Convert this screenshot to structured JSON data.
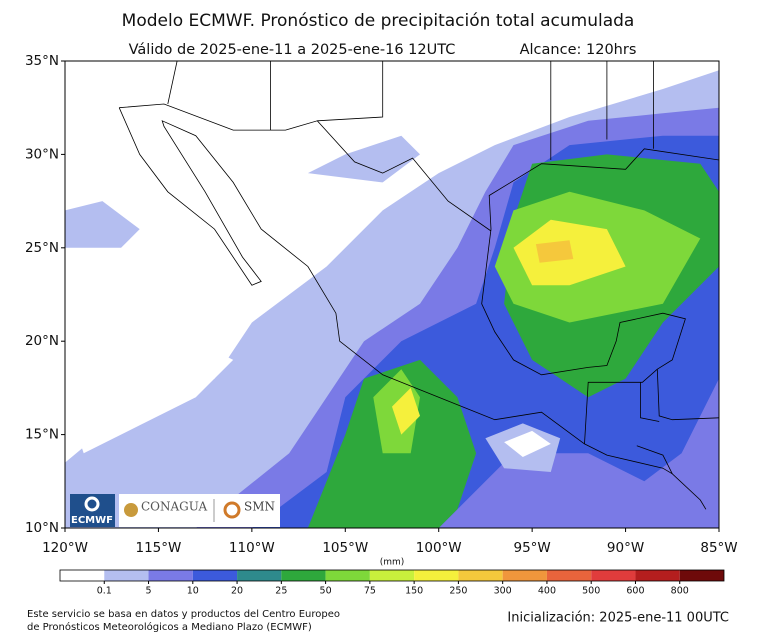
{
  "header": {
    "title": "Modelo ECMWF. Pronóstico de precipitación total acumulada",
    "valid": "Válido de 2025-ene-11 a 2025-ene-16 12UTC",
    "lead": "Alcance: 120hrs"
  },
  "map": {
    "lat_ticks": [
      {
        "value": 35,
        "label": "35°N"
      },
      {
        "value": 30,
        "label": "30°N"
      },
      {
        "value": 25,
        "label": "25°N"
      },
      {
        "value": 20,
        "label": "20°N"
      },
      {
        "value": 15,
        "label": "15°N"
      },
      {
        "value": 10,
        "label": "10°N"
      }
    ],
    "lon_ticks": [
      {
        "value": -120,
        "label": "120°W"
      },
      {
        "value": -115,
        "label": "115°W"
      },
      {
        "value": -110,
        "label": "110°W"
      },
      {
        "value": -105,
        "label": "105°W"
      },
      {
        "value": -100,
        "label": "100°W"
      },
      {
        "value": -95,
        "label": "95°W"
      },
      {
        "value": -90,
        "label": "90°W"
      },
      {
        "value": -85,
        "label": "85°W"
      }
    ]
  },
  "logos": {
    "ecmwf": "ECMWF",
    "conagua": "CONAGUA",
    "smn": "SMN"
  },
  "colorbar": {
    "unit": "(mm)",
    "levels": [
      0.1,
      5,
      10,
      20,
      25,
      50,
      75,
      150,
      250,
      300,
      400,
      500,
      600,
      800
    ],
    "colors": [
      "#ffffff",
      "#b4bef0",
      "#7a7ae6",
      "#3c5adc",
      "#2e8a8c",
      "#2ea83c",
      "#7ed83a",
      "#c8f03c",
      "#f5f03c",
      "#f5c83c",
      "#f0963c",
      "#e8643c",
      "#e03c3c",
      "#b41e1e",
      "#6e0a0a"
    ]
  },
  "footer": {
    "source": [
      "Este servicio se basa en datos y productos del Centro Europeo",
      "de Pronósticos Meteorológicos a Mediano Plazo (ECMWF)"
    ],
    "init": "Inicialización: 2025-ene-11 00UTC"
  }
}
